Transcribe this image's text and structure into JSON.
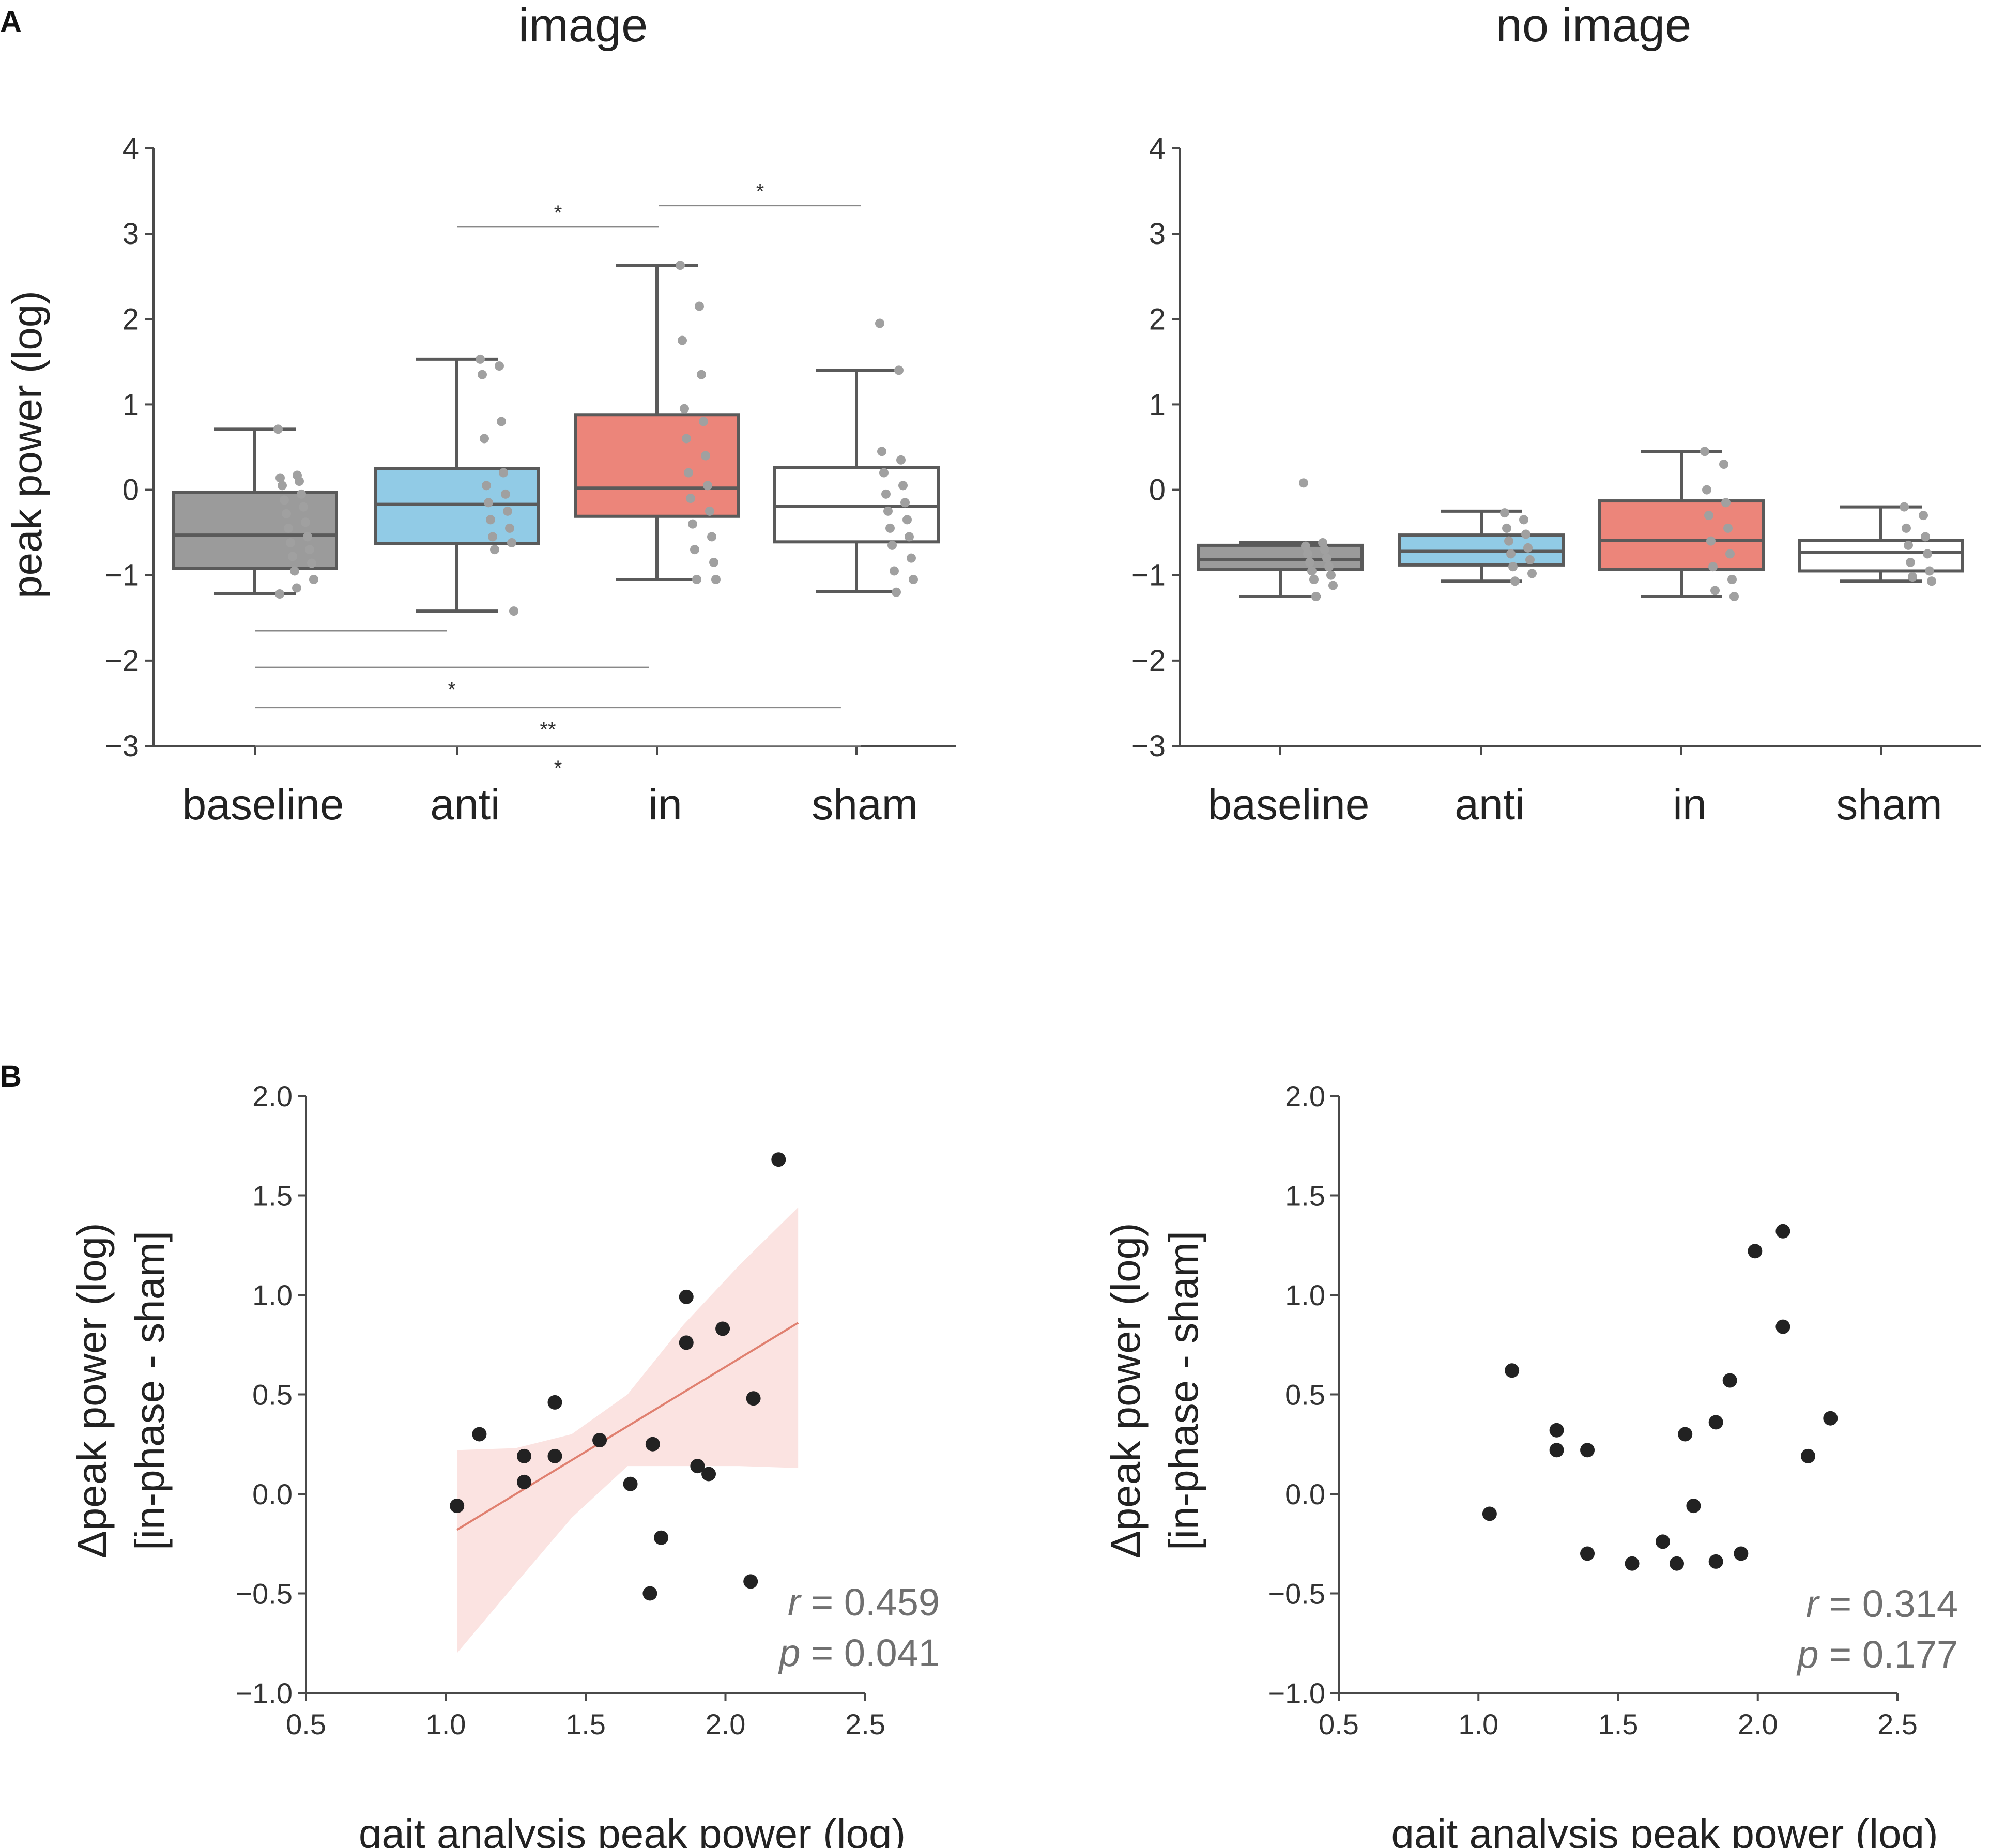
{
  "panel_labels": {
    "a": "A",
    "b": "B"
  },
  "colors": {
    "axis": "#4a4a4a",
    "box_line": "#5a5a5a",
    "jitter": "#a0a0a0",
    "scatter": "#222222",
    "fit_line": "#e08070",
    "ci_band": "#fbe3e1",
    "stat_text": "#707070",
    "sig_line": "#888888",
    "boxes": {
      "baseline": "#9b9b9b",
      "anti": "#91cbe6",
      "in": "#ec857a",
      "sham": "#ffffff"
    }
  },
  "chart_data": [
    {
      "id": "a-image",
      "type": "box",
      "title": "image",
      "ylabel": "peak power (log)",
      "xlabel": "",
      "ylim": [
        -3,
        4
      ],
      "yticks": [
        4,
        3,
        2,
        1,
        0,
        -1,
        -2,
        -3
      ],
      "ytick_labels": [
        "4",
        "3",
        "2",
        "1",
        "0",
        "−1",
        "−2",
        "−3"
      ],
      "categories": [
        "baseline",
        "anti",
        "in",
        "sham"
      ],
      "boxes": [
        {
          "q1": -0.92,
          "median": -0.53,
          "q3": -0.03,
          "whisker_low": -1.22,
          "whisker_high": 0.71,
          "points": [
            0.71,
            0.17,
            0.14,
            0.1,
            0.05,
            -0.05,
            -0.12,
            -0.2,
            -0.28,
            -0.38,
            -0.45,
            -0.55,
            -0.62,
            -0.7,
            -0.78,
            -0.86,
            -0.95,
            -1.05,
            -1.15,
            -1.22
          ]
        },
        {
          "q1": -0.63,
          "median": -0.17,
          "q3": 0.25,
          "whisker_low": -1.42,
          "whisker_high": 1.53,
          "points": [
            1.53,
            1.45,
            1.35,
            0.8,
            0.6,
            0.2,
            0.05,
            -0.05,
            -0.15,
            -0.25,
            -0.35,
            -0.45,
            -0.55,
            -0.62,
            -0.7,
            -1.42
          ]
        },
        {
          "q1": -0.31,
          "median": 0.02,
          "q3": 0.88,
          "whisker_low": -1.05,
          "whisker_high": 2.63,
          "points": [
            2.63,
            2.15,
            1.75,
            1.35,
            0.95,
            0.8,
            0.6,
            0.4,
            0.2,
            0.05,
            -0.1,
            -0.25,
            -0.4,
            -0.55,
            -0.7,
            -0.85,
            -1.05,
            -1.05
          ]
        },
        {
          "q1": -0.61,
          "median": -0.19,
          "q3": 0.26,
          "whisker_low": -1.19,
          "whisker_high": 1.4,
          "points": [
            1.95,
            1.4,
            0.45,
            0.35,
            0.2,
            0.05,
            -0.05,
            -0.15,
            -0.25,
            -0.35,
            -0.45,
            -0.55,
            -0.65,
            -0.8,
            -0.95,
            -1.05,
            -1.2
          ]
        }
      ],
      "significance": [
        {
          "from": 1,
          "to": 2,
          "y": 3.08,
          "label": "*"
        },
        {
          "from": 2,
          "to": 3,
          "y": 3.33,
          "label": "*"
        },
        {
          "from": 0,
          "to": 0.95,
          "y": -1.65,
          "label": ""
        },
        {
          "from": 0,
          "to": 1.95,
          "y": -2.08,
          "label": "*"
        },
        {
          "from": 0,
          "to": 2.9,
          "y": -2.55,
          "label": "**"
        },
        {
          "from": 0,
          "to": 3,
          "y": -3.0,
          "label": "*"
        }
      ]
    },
    {
      "id": "a-no-image",
      "type": "box",
      "title": "no image",
      "ylabel": "",
      "xlabel": "",
      "ylim": [
        -3,
        4
      ],
      "yticks": [
        4,
        3,
        2,
        1,
        0,
        -1,
        -2,
        -3
      ],
      "ytick_labels": [
        "4",
        "3",
        "2",
        "1",
        "0",
        "−1",
        "−2",
        "−3"
      ],
      "categories": [
        "baseline",
        "anti",
        "in",
        "sham"
      ],
      "boxes": [
        {
          "q1": -0.93,
          "median": -0.82,
          "q3": -0.65,
          "whisker_low": -1.25,
          "whisker_high": -0.62,
          "points": [
            0.08,
            -0.62,
            -0.66,
            -0.7,
            -0.75,
            -0.8,
            -0.85,
            -0.9,
            -0.95,
            -1.0,
            -1.05,
            -1.12,
            -1.25
          ]
        },
        {
          "q1": -0.88,
          "median": -0.72,
          "q3": -0.53,
          "whisker_low": -1.07,
          "whisker_high": -0.25,
          "points": [
            -0.27,
            -0.35,
            -0.45,
            -0.52,
            -0.6,
            -0.68,
            -0.75,
            -0.82,
            -0.9,
            -0.98,
            -1.07
          ]
        },
        {
          "q1": -0.93,
          "median": -0.59,
          "q3": -0.13,
          "whisker_low": -1.25,
          "whisker_high": 0.45,
          "points": [
            0.45,
            0.3,
            0.0,
            -0.15,
            -0.3,
            -0.45,
            -0.6,
            -0.75,
            -0.9,
            -1.05,
            -1.18,
            -1.25
          ]
        },
        {
          "q1": -0.95,
          "median": -0.73,
          "q3": -0.59,
          "whisker_low": -1.07,
          "whisker_high": -0.2,
          "points": [
            -0.2,
            -0.3,
            -0.45,
            -0.55,
            -0.65,
            -0.75,
            -0.85,
            -0.95,
            -1.02,
            -1.07
          ]
        }
      ],
      "significance": []
    },
    {
      "id": "b-image",
      "type": "scatter",
      "xlabel": "gait analysis peak power (log)",
      "ylabel_lines": [
        "Δpeak power (log)",
        "[in-phase - sham]"
      ],
      "xlim": [
        0.5,
        2.5
      ],
      "ylim": [
        -1.0,
        2.0
      ],
      "xticks": [
        0.5,
        1.0,
        1.5,
        2.0,
        2.5
      ],
      "xtick_labels": [
        "0.5",
        "1.0",
        "1.5",
        "2.0",
        "2.5"
      ],
      "yticks": [
        2.0,
        1.5,
        1.0,
        0.5,
        0.0,
        -0.5,
        -1.0
      ],
      "ytick_labels": [
        "2.0",
        "1.5",
        "1.0",
        "0.5",
        "0.0",
        "−0.5",
        "−1.0"
      ],
      "x": [
        1.04,
        1.12,
        1.28,
        1.28,
        1.39,
        1.39,
        1.55,
        1.66,
        1.73,
        1.74,
        1.77,
        1.86,
        1.86,
        1.9,
        1.94,
        1.99,
        2.09,
        2.1,
        2.19
      ],
      "y": [
        -0.06,
        0.3,
        0.19,
        0.06,
        0.46,
        0.19,
        0.27,
        0.05,
        -0.5,
        0.25,
        -0.22,
        0.99,
        0.76,
        0.14,
        0.1,
        0.83,
        -0.44,
        0.48,
        1.68
      ],
      "fit": {
        "x": [
          1.04,
          2.26
        ],
        "y": [
          -0.18,
          0.86
        ]
      },
      "ci_band": {
        "x": [
          1.04,
          1.25,
          1.45,
          1.65,
          1.85,
          2.05,
          2.26
        ],
        "lower": [
          -0.8,
          -0.45,
          -0.12,
          0.14,
          0.14,
          0.14,
          0.13
        ],
        "upper": [
          0.22,
          0.23,
          0.3,
          0.5,
          0.85,
          1.15,
          1.44
        ]
      },
      "annotation": {
        "r_label": "r",
        "r_value": " = 0.459",
        "p_label": "p",
        "p_value": " = 0.041"
      }
    },
    {
      "id": "b-no-image",
      "type": "scatter",
      "xlabel": "gait analysis peak power (log)",
      "ylabel_lines": [
        "Δpeak power (log)",
        "[in-phase - sham]"
      ],
      "xlim": [
        0.5,
        2.5
      ],
      "ylim": [
        -1.0,
        2.0
      ],
      "xticks": [
        0.5,
        1.0,
        1.5,
        2.0,
        2.5
      ],
      "xtick_labels": [
        "0.5",
        "1.0",
        "1.5",
        "2.0",
        "2.5"
      ],
      "yticks": [
        2.0,
        1.5,
        1.0,
        0.5,
        0.0,
        -0.5,
        -1.0
      ],
      "ytick_labels": [
        "2.0",
        "1.5",
        "1.0",
        "0.5",
        "0.0",
        "−0.5",
        "−1.0"
      ],
      "x": [
        1.04,
        1.12,
        1.28,
        1.28,
        1.39,
        1.39,
        1.55,
        1.66,
        1.71,
        1.74,
        1.77,
        1.85,
        1.85,
        1.9,
        1.94,
        1.99,
        2.09,
        2.09,
        2.18,
        2.26
      ],
      "y": [
        -0.1,
        0.62,
        0.32,
        0.22,
        0.22,
        -0.3,
        -0.35,
        -0.24,
        -0.35,
        0.3,
        -0.06,
        0.36,
        -0.34,
        0.57,
        -0.3,
        1.22,
        1.32,
        0.84,
        0.19,
        0.38
      ],
      "annotation": {
        "r_label": "r",
        "r_value": " = 0.314",
        "p_label": "p",
        "p_value": " = 0.177"
      }
    }
  ]
}
